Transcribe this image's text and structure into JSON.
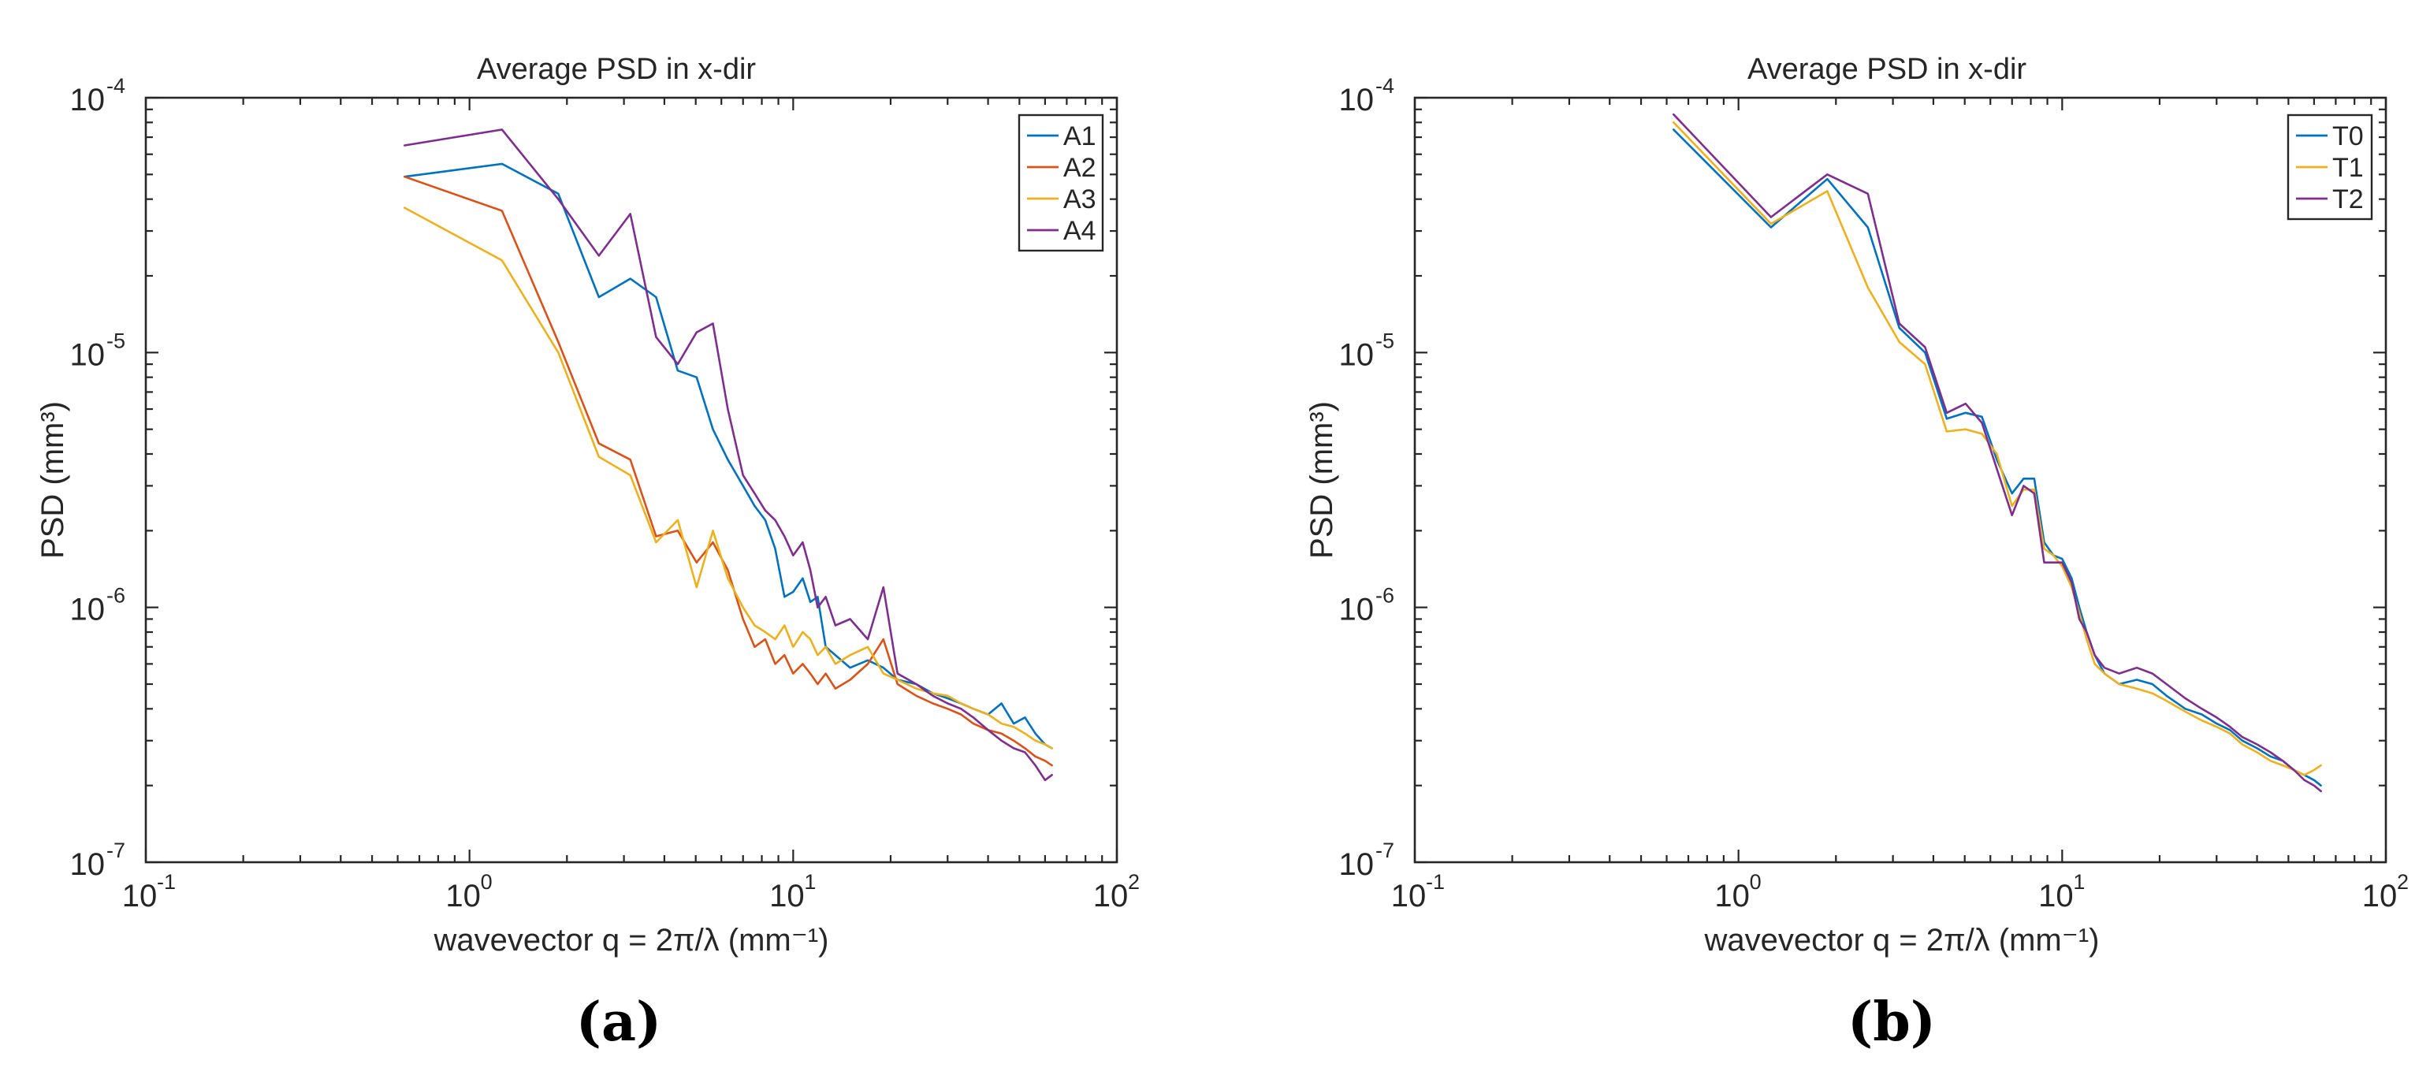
{
  "figure": {
    "panel_labels": [
      "(a)",
      "(b)"
    ]
  },
  "chart_data": [
    {
      "type": "line",
      "panel": "(a)",
      "title": "Average PSD in x-dir",
      "xlabel": "wavevector q = 2π/λ (mm⁻¹)",
      "ylabel": "PSD (mm³)",
      "xscale": "log",
      "yscale": "log",
      "xlim": [
        0.1,
        100
      ],
      "ylim": [
        1e-07,
        0.0001
      ],
      "xticks": [
        {
          "value": 0.1,
          "base": "10",
          "exp": "-1"
        },
        {
          "value": 1,
          "base": "10",
          "exp": "0"
        },
        {
          "value": 10,
          "base": "10",
          "exp": "1"
        },
        {
          "value": 100,
          "base": "10",
          "exp": "2"
        }
      ],
      "yticks": [
        {
          "value": 1e-07,
          "base": "10",
          "exp": "-7"
        },
        {
          "value": 1e-06,
          "base": "10",
          "exp": "-6"
        },
        {
          "value": 1e-05,
          "base": "10",
          "exp": "-5"
        },
        {
          "value": 0.0001,
          "base": "10",
          "exp": "-4"
        }
      ],
      "legend_position": "top-right",
      "series": [
        {
          "name": "A1",
          "color": "#0072BD",
          "x": [
            0.63,
            1.26,
            1.88,
            2.51,
            3.14,
            3.77,
            4.4,
            5.03,
            5.65,
            6.28,
            7.0,
            7.6,
            8.2,
            8.8,
            9.4,
            10.0,
            10.7,
            11.3,
            11.9,
            12.6,
            13.5,
            15.0,
            17.0,
            19.0,
            21.0,
            24.0,
            27.0,
            30.0,
            33.0,
            36.0,
            40.0,
            44.0,
            48.0,
            52.0,
            56.0,
            60.0,
            63.0
          ],
          "y": [
            4.9e-05,
            5.5e-05,
            4.2e-05,
            1.65e-05,
            1.95e-05,
            1.65e-05,
            8.5e-06,
            8e-06,
            5e-06,
            3.8e-06,
            3e-06,
            2.5e-06,
            2.2e-06,
            1.7e-06,
            1.1e-06,
            1.15e-06,
            1.3e-06,
            1.05e-06,
            1.1e-06,
            7e-07,
            6.5e-07,
            5.8e-07,
            6.2e-07,
            5.8e-07,
            5.2e-07,
            5e-07,
            4.6e-07,
            4.4e-07,
            4.2e-07,
            4e-07,
            3.8e-07,
            4.2e-07,
            3.5e-07,
            3.7e-07,
            3.2e-07,
            2.9e-07,
            2.8e-07
          ]
        },
        {
          "name": "A2",
          "color": "#D95319",
          "x": [
            0.63,
            1.26,
            1.88,
            2.51,
            3.14,
            3.77,
            4.4,
            5.03,
            5.65,
            6.28,
            7.0,
            7.6,
            8.2,
            8.8,
            9.4,
            10.0,
            10.7,
            11.3,
            11.9,
            12.6,
            13.5,
            15.0,
            17.0,
            19.0,
            21.0,
            24.0,
            27.0,
            30.0,
            33.0,
            36.0,
            40.0,
            44.0,
            48.0,
            52.0,
            56.0,
            60.0,
            63.0
          ],
          "y": [
            4.9e-05,
            3.6e-05,
            1.1e-05,
            4.4e-06,
            3.8e-06,
            1.9e-06,
            2e-06,
            1.5e-06,
            1.8e-06,
            1.4e-06,
            9e-07,
            7e-07,
            7.5e-07,
            6e-07,
            6.5e-07,
            5.5e-07,
            6e-07,
            5.5e-07,
            5e-07,
            5.5e-07,
            4.8e-07,
            5.2e-07,
            6e-07,
            7.5e-07,
            5e-07,
            4.5e-07,
            4.2e-07,
            4e-07,
            3.8e-07,
            3.5e-07,
            3.3e-07,
            3.2e-07,
            3e-07,
            2.8e-07,
            2.6e-07,
            2.5e-07,
            2.4e-07
          ]
        },
        {
          "name": "A3",
          "color": "#EDB120",
          "x": [
            0.63,
            1.26,
            1.88,
            2.51,
            3.14,
            3.77,
            4.4,
            5.03,
            5.65,
            6.28,
            7.0,
            7.6,
            8.2,
            8.8,
            9.4,
            10.0,
            10.7,
            11.3,
            11.9,
            12.6,
            13.5,
            15.0,
            17.0,
            19.0,
            21.0,
            24.0,
            27.0,
            30.0,
            33.0,
            36.0,
            40.0,
            44.0,
            48.0,
            52.0,
            56.0,
            60.0,
            63.0
          ],
          "y": [
            3.7e-05,
            2.3e-05,
            1e-05,
            3.9e-06,
            3.3e-06,
            1.8e-06,
            2.2e-06,
            1.2e-06,
            2e-06,
            1.3e-06,
            1e-06,
            8.5e-07,
            8e-07,
            7.5e-07,
            8.5e-07,
            7e-07,
            8e-07,
            7.5e-07,
            6.5e-07,
            7e-07,
            6e-07,
            6.5e-07,
            7e-07,
            5.5e-07,
            5.2e-07,
            4.8e-07,
            4.6e-07,
            4.5e-07,
            4.2e-07,
            4e-07,
            3.8e-07,
            3.5e-07,
            3.4e-07,
            3.2e-07,
            3e-07,
            2.9e-07,
            2.8e-07
          ]
        },
        {
          "name": "A4",
          "color": "#7E2F8E",
          "x": [
            0.63,
            1.26,
            1.88,
            2.51,
            3.14,
            3.77,
            4.4,
            5.03,
            5.65,
            6.28,
            7.0,
            7.6,
            8.2,
            8.8,
            9.4,
            10.0,
            10.7,
            11.3,
            11.9,
            12.6,
            13.5,
            15.0,
            17.0,
            19.0,
            21.0,
            24.0,
            27.0,
            30.0,
            33.0,
            36.0,
            40.0,
            44.0,
            48.0,
            52.0,
            56.0,
            60.0,
            63.0
          ],
          "y": [
            6.5e-05,
            7.5e-05,
            4e-05,
            2.4e-05,
            3.5e-05,
            1.15e-05,
            9e-06,
            1.2e-05,
            1.3e-05,
            6e-06,
            3.3e-06,
            2.8e-06,
            2.4e-06,
            2.2e-06,
            1.9e-06,
            1.6e-06,
            1.8e-06,
            1.4e-06,
            1e-06,
            1.1e-06,
            8.5e-07,
            9e-07,
            7.5e-07,
            1.2e-06,
            5.5e-07,
            5e-07,
            4.5e-07,
            4.2e-07,
            4e-07,
            3.7e-07,
            3.3e-07,
            3e-07,
            2.8e-07,
            2.7e-07,
            2.4e-07,
            2.1e-07,
            2.2e-07
          ]
        }
      ]
    },
    {
      "type": "line",
      "panel": "(b)",
      "title": "Average PSD in x-dir",
      "xlabel": "wavevector q = 2π/λ (mm⁻¹)",
      "ylabel": "PSD (mm³)",
      "xscale": "log",
      "yscale": "log",
      "xlim": [
        0.1,
        100
      ],
      "ylim": [
        1e-07,
        0.0001
      ],
      "xticks": [
        {
          "value": 0.1,
          "base": "10",
          "exp": "-1"
        },
        {
          "value": 1,
          "base": "10",
          "exp": "0"
        },
        {
          "value": 10,
          "base": "10",
          "exp": "1"
        },
        {
          "value": 100,
          "base": "10",
          "exp": "2"
        }
      ],
      "yticks": [
        {
          "value": 1e-07,
          "base": "10",
          "exp": "-7"
        },
        {
          "value": 1e-06,
          "base": "10",
          "exp": "-6"
        },
        {
          "value": 1e-05,
          "base": "10",
          "exp": "-5"
        },
        {
          "value": 0.0001,
          "base": "10",
          "exp": "-4"
        }
      ],
      "legend_position": "top-right",
      "series": [
        {
          "name": "T0",
          "color": "#0072BD",
          "x": [
            0.63,
            1.26,
            1.88,
            2.51,
            3.14,
            3.77,
            4.4,
            5.03,
            5.65,
            6.28,
            7.0,
            7.6,
            8.2,
            8.8,
            9.4,
            10.0,
            10.7,
            11.3,
            11.9,
            12.6,
            13.5,
            15.0,
            17.0,
            19.0,
            21.0,
            24.0,
            27.0,
            30.0,
            33.0,
            36.0,
            40.0,
            44.0,
            48.0,
            52.0,
            56.0,
            60.0,
            63.0
          ],
          "y": [
            7.5e-05,
            3.1e-05,
            4.8e-05,
            3.1e-05,
            1.25e-05,
            1e-05,
            5.5e-06,
            5.8e-06,
            5.6e-06,
            3.8e-06,
            2.8e-06,
            3.2e-06,
            3.2e-06,
            1.8e-06,
            1.6e-06,
            1.55e-06,
            1.3e-06,
            1e-06,
            8e-07,
            6.5e-07,
            5.5e-07,
            5e-07,
            5.2e-07,
            5e-07,
            4.5e-07,
            4e-07,
            3.8e-07,
            3.5e-07,
            3.3e-07,
            3e-07,
            2.8e-07,
            2.6e-07,
            2.5e-07,
            2.3e-07,
            2.2e-07,
            2.1e-07,
            2e-07
          ]
        },
        {
          "name": "T1",
          "color": "#EDB120",
          "x": [
            0.63,
            1.26,
            1.88,
            2.51,
            3.14,
            3.77,
            4.4,
            5.03,
            5.65,
            6.28,
            7.0,
            7.6,
            8.2,
            8.8,
            9.4,
            10.0,
            10.7,
            11.3,
            11.9,
            12.6,
            13.5,
            15.0,
            17.0,
            19.0,
            21.0,
            24.0,
            27.0,
            30.0,
            33.0,
            36.0,
            40.0,
            44.0,
            48.0,
            52.0,
            56.0,
            60.0,
            63.0
          ],
          "y": [
            8e-05,
            3.2e-05,
            4.3e-05,
            1.8e-05,
            1.1e-05,
            9e-06,
            4.9e-06,
            5e-06,
            4.8e-06,
            4e-06,
            2.5e-06,
            2.9e-06,
            2.9e-06,
            1.7e-06,
            1.6e-06,
            1.45e-06,
            1.2e-06,
            9.5e-07,
            7.5e-07,
            6e-07,
            5.5e-07,
            5e-07,
            4.8e-07,
            4.6e-07,
            4.3e-07,
            3.9e-07,
            3.6e-07,
            3.4e-07,
            3.2e-07,
            2.9e-07,
            2.7e-07,
            2.5e-07,
            2.4e-07,
            2.3e-07,
            2.2e-07,
            2.3e-07,
            2.4e-07
          ]
        },
        {
          "name": "T2",
          "color": "#7E2F8E",
          "x": [
            0.63,
            1.26,
            1.88,
            2.51,
            3.14,
            3.77,
            4.4,
            5.03,
            5.65,
            6.28,
            7.0,
            7.6,
            8.2,
            8.8,
            9.4,
            10.0,
            10.7,
            11.3,
            11.9,
            12.6,
            13.5,
            15.0,
            17.0,
            19.0,
            21.0,
            24.0,
            27.0,
            30.0,
            33.0,
            36.0,
            40.0,
            44.0,
            48.0,
            52.0,
            56.0,
            60.0,
            63.0
          ],
          "y": [
            8.6e-05,
            3.4e-05,
            5e-05,
            4.2e-05,
            1.3e-05,
            1.05e-05,
            5.8e-06,
            6.3e-06,
            5.3e-06,
            3.5e-06,
            2.3e-06,
            3e-06,
            2.8e-06,
            1.5e-06,
            1.5e-06,
            1.5e-06,
            1.25e-06,
            9e-07,
            8e-07,
            6.5e-07,
            5.8e-07,
            5.5e-07,
            5.8e-07,
            5.5e-07,
            5e-07,
            4.4e-07,
            4e-07,
            3.7e-07,
            3.4e-07,
            3.1e-07,
            2.9e-07,
            2.7e-07,
            2.5e-07,
            2.3e-07,
            2.1e-07,
            2e-07,
            1.9e-07
          ]
        }
      ]
    }
  ]
}
